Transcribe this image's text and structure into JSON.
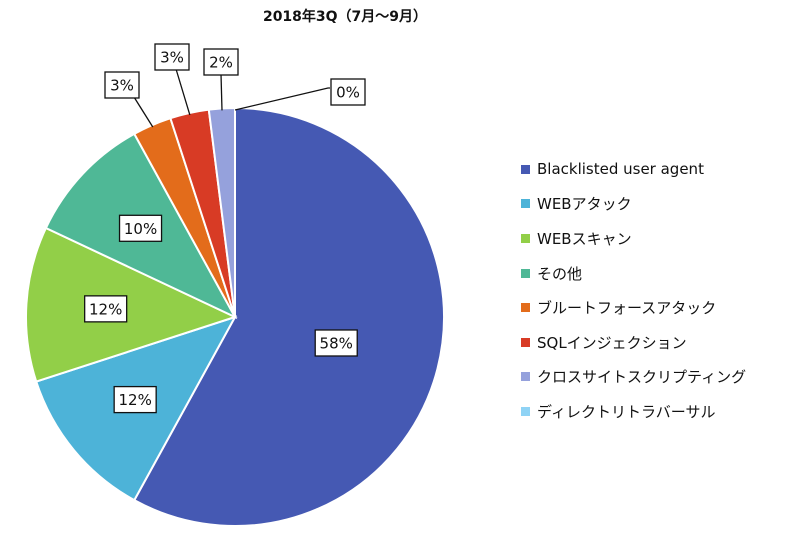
{
  "chart_data": {
    "type": "pie",
    "title": "2018年3Q（7月～9月）",
    "start_angle": "12 o'clock",
    "direction": "clockwise",
    "legend_position": "right",
    "slices": [
      {
        "label": "Blacklisted user agent",
        "value": 58,
        "display": "58%",
        "color": "#4559b3"
      },
      {
        "label": "WEBアタック",
        "value": 12,
        "display": "12%",
        "color": "#4db3d8"
      },
      {
        "label": "WEBスキャン",
        "value": 12,
        "display": "12%",
        "color": "#92cf48"
      },
      {
        "label": "その他",
        "value": 10,
        "display": "10%",
        "color": "#4fb896"
      },
      {
        "label": "ブルートフォースアタック",
        "value": 3,
        "display": "3%",
        "color": "#e36c1b"
      },
      {
        "label": "SQLインジェクション",
        "value": 3,
        "display": "3%",
        "color": "#d83b25"
      },
      {
        "label": "クロスサイトスクリプティング",
        "value": 2,
        "display": "2%",
        "color": "#95a1dc"
      },
      {
        "label": "ディレクトリトラバーサル",
        "value": 0,
        "display": "0%",
        "color": "#8fd3f5"
      }
    ]
  }
}
